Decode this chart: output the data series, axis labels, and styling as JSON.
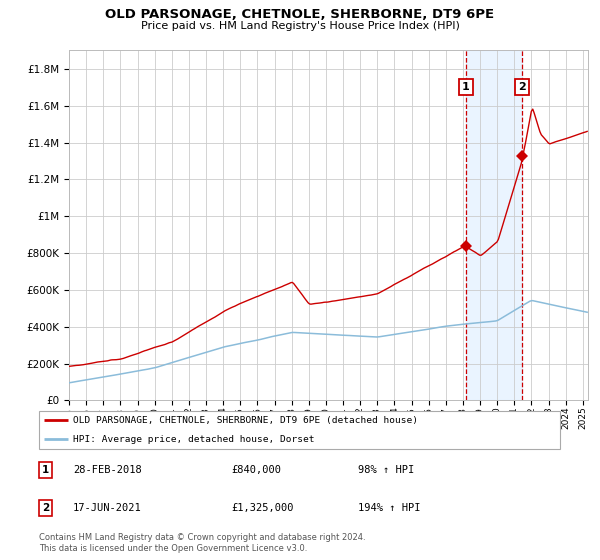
{
  "title": "OLD PARSONAGE, CHETNOLE, SHERBORNE, DT9 6PE",
  "subtitle": "Price paid vs. HM Land Registry's House Price Index (HPI)",
  "legend_property": "OLD PARSONAGE, CHETNOLE, SHERBORNE, DT9 6PE (detached house)",
  "legend_hpi": "HPI: Average price, detached house, Dorset",
  "sale1_date": "28-FEB-2018",
  "sale1_price": "£840,000",
  "sale1_hpi": "98% ↑ HPI",
  "sale1_year": 2018.15,
  "sale1_value": 840000,
  "sale2_date": "17-JUN-2021",
  "sale2_price": "£1,325,000",
  "sale2_hpi": "194% ↑ HPI",
  "sale2_year": 2021.45,
  "sale2_value": 1325000,
  "footer": "Contains HM Land Registry data © Crown copyright and database right 2024.\nThis data is licensed under the Open Government Licence v3.0.",
  "ylim": [
    0,
    1900000
  ],
  "yticks": [
    0,
    200000,
    400000,
    600000,
    800000,
    1000000,
    1200000,
    1400000,
    1600000,
    1800000
  ],
  "background_color": "#ffffff",
  "grid_color": "#cccccc",
  "line_property_color": "#cc0000",
  "line_hpi_color": "#8bbcda",
  "shade_color": "#ddeeff",
  "dashed_color": "#cc0000",
  "xlim_start": 1995,
  "xlim_end": 2025.3
}
